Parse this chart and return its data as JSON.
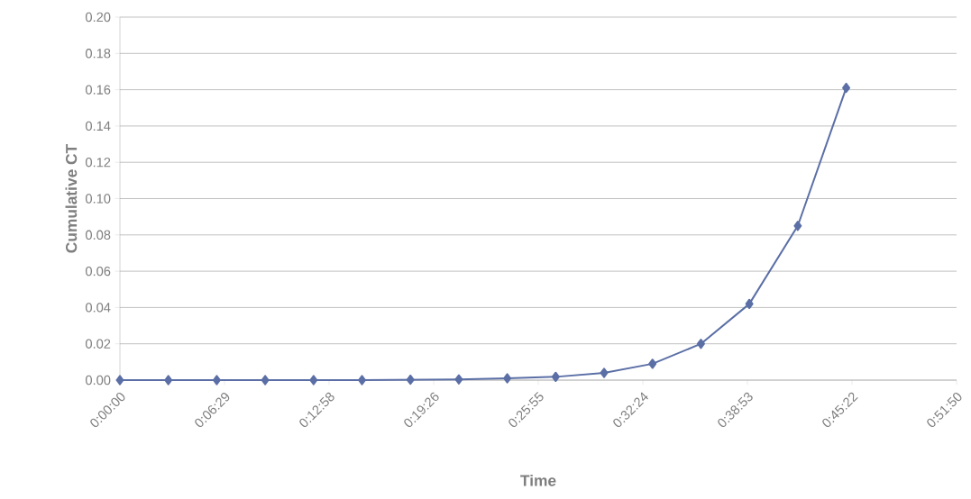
{
  "chart_data": {
    "type": "line",
    "xlabel": "Time",
    "ylabel": "Cumulative CT",
    "x": [
      0,
      0.05,
      0.1,
      0.15,
      0.2,
      0.25,
      0.3,
      0.35,
      0.4,
      0.45,
      0.5,
      0.55,
      0.6,
      0.65,
      0.7,
      0.75
    ],
    "series": [
      {
        "color": "#5b6fa6",
        "values": [
          0,
          0,
          0,
          0,
          0,
          0,
          0.0002,
          0.0004,
          0.001,
          0.0018,
          0.004,
          0.009,
          0.02,
          0.042,
          0.085,
          0.161
        ]
      }
    ],
    "xlim": [
      0,
      0.864
    ],
    "xticks": [
      {
        "value": 0,
        "label": "0:00:00"
      },
      {
        "value": 0.108,
        "label": "0:06:29"
      },
      {
        "value": 0.216,
        "label": "0:12:58"
      },
      {
        "value": 0.324,
        "label": "0:19:26"
      },
      {
        "value": 0.432,
        "label": "0:25:55"
      },
      {
        "value": 0.54,
        "label": "0:32:24"
      },
      {
        "value": 0.648,
        "label": "0:38:53"
      },
      {
        "value": 0.756,
        "label": "0:45:22"
      },
      {
        "value": 0.864,
        "label": "0:51:50"
      }
    ],
    "ylim": [
      0,
      0.2
    ],
    "yticks": [
      {
        "value": 0,
        "label": "0.00"
      },
      {
        "value": 0.02,
        "label": "0.02"
      },
      {
        "value": 0.04,
        "label": "0.04"
      },
      {
        "value": 0.06,
        "label": "0.06"
      },
      {
        "value": 0.08,
        "label": "0.08"
      },
      {
        "value": 0.1,
        "label": "0.10"
      },
      {
        "value": 0.12,
        "label": "0.12"
      },
      {
        "value": 0.14,
        "label": "0.14"
      },
      {
        "value": 0.16,
        "label": "0.16"
      },
      {
        "value": 0.18,
        "label": "0.18"
      },
      {
        "value": 0.2,
        "label": "0.20"
      }
    ],
    "grid": "y",
    "marker": "diamond",
    "line_style": "solid"
  }
}
